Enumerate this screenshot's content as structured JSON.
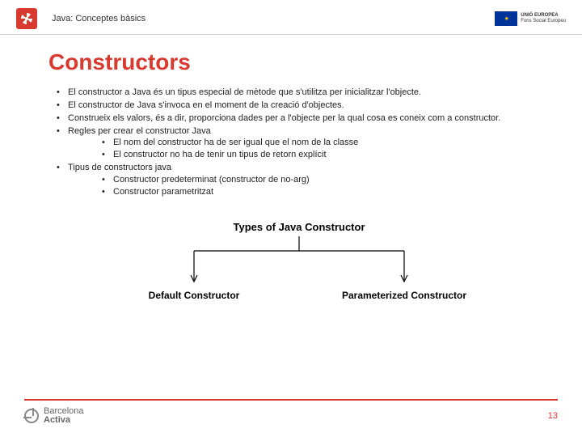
{
  "header": {
    "title": "Java: Conceptes bàsics",
    "eu_label_top": "UNIÓ EUROPEA",
    "eu_label_bottom": "Fons Social Europeu"
  },
  "slide": {
    "title": "Constructors",
    "bullets": [
      {
        "text": "El constructor a Java és un tipus especial de mètode que s'utilitza per inicialitzar l'objecte."
      },
      {
        "text": "El constructor de Java s'invoca en el moment de la creació d'objectes."
      },
      {
        "text": "Construeix els valors, és a dir, proporciona dades per a l'objecte per la qual cosa es coneix com a constructor."
      },
      {
        "text": "Regles per crear el constructor Java",
        "children": [
          "El nom del constructor ha de ser igual que el nom de la classe",
          "El constructor no ha de tenir un tipus de retorn explícit"
        ]
      },
      {
        "text": "Tipus de constructors java",
        "children": [
          "Constructor predeterminat (constructor de no-arg)",
          "Constructor parametritzat"
        ]
      }
    ]
  },
  "diagram": {
    "type": "tree",
    "root": "Types of Java Constructor",
    "leaves": [
      "Default Constructor",
      "Parameterized Constructor"
    ],
    "line_color": "#000000",
    "line_width": 1.2,
    "font_size_root": 13,
    "font_size_leaf": 12,
    "text_color": "#000000"
  },
  "footer": {
    "logo_top": "Barcelona",
    "logo_bottom": "Activa",
    "page_number": "13",
    "accent_color": "#d83a2f"
  }
}
